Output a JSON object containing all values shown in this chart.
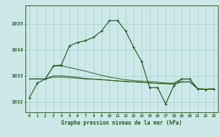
{
  "title": "Graphe pression niveau de la mer (hPa)",
  "background_color": "#cce8e8",
  "grid_color": "#aacccc",
  "line_color": "#2d5a1b",
  "x_labels": [
    "0",
    "1",
    "2",
    "3",
    "4",
    "5",
    "6",
    "7",
    "8",
    "9",
    "10",
    "11",
    "12",
    "13",
    "14",
    "15",
    "16",
    "17",
    "18",
    "19",
    "20",
    "21",
    "22",
    "23"
  ],
  "xlim": [
    -0.5,
    23.5
  ],
  "ylim": [
    1031.6,
    1035.7
  ],
  "yticks": [
    1032,
    1033,
    1034,
    1035
  ],
  "series1": [
    1032.15,
    1032.72,
    1032.88,
    1033.38,
    1033.42,
    1034.15,
    1034.28,
    1034.35,
    1034.48,
    1034.72,
    1035.12,
    1035.12,
    1034.72,
    1034.1,
    1033.55,
    1032.55,
    1032.55,
    1031.92,
    1032.62,
    1032.88,
    1032.88,
    1032.5,
    1032.48,
    1032.5
  ],
  "series2": [
    1032.88,
    1032.88,
    1032.88,
    1033.38,
    1033.38,
    1033.32,
    1033.25,
    1033.18,
    1033.1,
    1033.02,
    1032.95,
    1032.9,
    1032.85,
    1032.82,
    1032.8,
    1032.78,
    1032.76,
    1032.73,
    1032.72,
    1032.88,
    1032.88,
    1032.5,
    1032.48,
    1032.5
  ],
  "series3": [
    1032.88,
    1032.88,
    1032.88,
    1033.0,
    1033.0,
    1032.98,
    1032.94,
    1032.9,
    1032.88,
    1032.86,
    1032.83,
    1032.8,
    1032.78,
    1032.77,
    1032.75,
    1032.73,
    1032.71,
    1032.7,
    1032.69,
    1032.78,
    1032.78,
    1032.5,
    1032.48,
    1032.5
  ],
  "series4": [
    1032.88,
    1032.88,
    1032.88,
    1032.95,
    1032.95,
    1032.93,
    1032.91,
    1032.88,
    1032.87,
    1032.85,
    1032.83,
    1032.81,
    1032.79,
    1032.77,
    1032.75,
    1032.73,
    1032.71,
    1032.69,
    1032.68,
    1032.76,
    1032.76,
    1032.5,
    1032.48,
    1032.5
  ]
}
